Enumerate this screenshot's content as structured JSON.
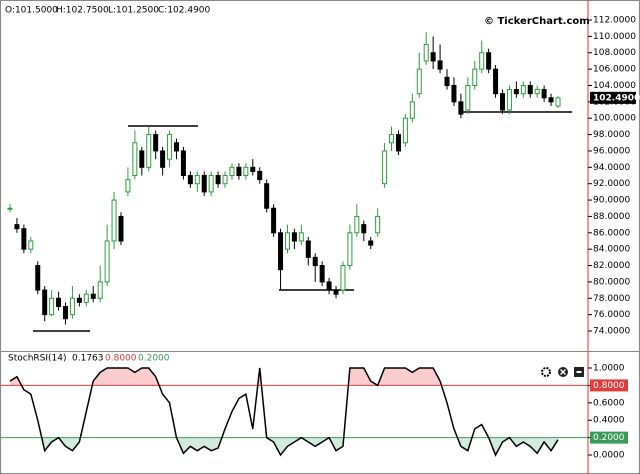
{
  "chart_data": [
    {
      "type": "candlestick",
      "ohlc_labels": [
        "O:101.5000",
        "H:102.7500",
        "L:101.2500",
        "C:102.4900"
      ],
      "watermark": "© TickerChart.com",
      "open": [
        89,
        87,
        86.5,
        84,
        82,
        79,
        76,
        78,
        77,
        76,
        78,
        77.5,
        78.5,
        78,
        80,
        85,
        88,
        91,
        93,
        96,
        94,
        98,
        96,
        95,
        97,
        96,
        93,
        92,
        93,
        91,
        93,
        92,
        93,
        94,
        93,
        94,
        93.5,
        92,
        89,
        86,
        84,
        86,
        85,
        85,
        83,
        82,
        80,
        79,
        79,
        82,
        86,
        87,
        85,
        86,
        92,
        97,
        98,
        97,
        100,
        103,
        107,
        108,
        107,
        105,
        104,
        102,
        101,
        104,
        106,
        108,
        106,
        103,
        101,
        103.5,
        103,
        104,
        103,
        103.5,
        102.5,
        101.5
      ],
      "high": [
        89.5,
        87.8,
        87,
        85.5,
        82.5,
        79.5,
        79,
        78.8,
        77.5,
        79.5,
        78.5,
        79,
        79.5,
        82,
        87,
        91,
        88.5,
        94,
        98.5,
        96.5,
        99,
        98.5,
        96.5,
        98.5,
        97.5,
        96.5,
        93.5,
        93.5,
        93.5,
        93.5,
        93.5,
        93.5,
        94.5,
        94.5,
        94.5,
        95,
        94,
        92.5,
        89.5,
        86.5,
        87,
        86.5,
        87,
        85.5,
        83.5,
        82.5,
        80.5,
        79.5,
        82.5,
        87,
        89.5,
        87.5,
        85.5,
        89,
        97,
        99,
        98.5,
        100.5,
        103,
        108,
        110.5,
        110,
        109,
        106,
        105,
        103,
        105,
        107,
        109.5,
        108.5,
        106.5,
        103.5,
        104,
        104.5,
        104.5,
        104.5,
        104,
        104,
        103,
        102.75
      ],
      "low": [
        88.5,
        86,
        83.5,
        83.5,
        78.5,
        75.2,
        75.8,
        76.5,
        74.8,
        75.5,
        77,
        77,
        77.5,
        77.5,
        79.5,
        84,
        84.5,
        90.5,
        92.5,
        93,
        93.5,
        95,
        93,
        94,
        95,
        92.5,
        91.5,
        91,
        90.5,
        90.5,
        91.5,
        91.5,
        92.5,
        92.5,
        92.5,
        93,
        92,
        88.5,
        85.5,
        79,
        83.5,
        84,
        84.5,
        82,
        80,
        79.5,
        78.5,
        78,
        78.5,
        81.5,
        85.5,
        85,
        84,
        85.5,
        91.5,
        96,
        95.5,
        96.5,
        99.5,
        102.5,
        106.5,
        106,
        105.5,
        103.5,
        101.5,
        100,
        100.5,
        103.5,
        105.5,
        105.5,
        102.5,
        100.5,
        100.5,
        102.5,
        102.5,
        102.5,
        102.5,
        102,
        101.5,
        101.25
      ],
      "close": [
        89,
        86.5,
        84,
        85,
        79,
        76,
        78,
        77,
        75.5,
        78,
        77.5,
        78.5,
        78,
        80,
        85,
        90,
        85,
        92.5,
        97,
        94,
        98,
        96,
        94,
        98,
        96,
        93,
        92,
        93,
        91,
        93,
        92,
        93,
        94,
        93,
        94,
        93.5,
        92.5,
        89,
        86,
        81.5,
        86,
        85,
        86,
        83,
        82,
        80,
        79,
        78.5,
        82,
        86,
        88,
        86,
        84.5,
        88,
        96,
        98,
        96,
        100,
        102,
        106,
        109,
        107,
        106,
        104,
        102,
        100.5,
        104,
        106,
        108,
        106,
        103,
        101,
        103.5,
        103,
        104,
        103,
        103.5,
        102.5,
        102,
        102.49
      ],
      "up_color": "#2e9e3e",
      "down_color": "#000000",
      "ylim": [
        71.68,
        114.2
      ],
      "yticks": [
        {
          "value": 74,
          "label": "74.0000"
        },
        {
          "value": 76,
          "label": "76.0000"
        },
        {
          "value": 78,
          "label": "78.0000"
        },
        {
          "value": 80,
          "label": "80.0000"
        },
        {
          "value": 82,
          "label": "82.0000"
        },
        {
          "value": 84,
          "label": "84.0000"
        },
        {
          "value": 86,
          "label": "86.0000"
        },
        {
          "value": 88,
          "label": "88.0000"
        },
        {
          "value": 90,
          "label": "90.0000"
        },
        {
          "value": 92,
          "label": "92.0000"
        },
        {
          "value": 94,
          "label": "94.0000"
        },
        {
          "value": 96,
          "label": "96.0000"
        },
        {
          "value": 98,
          "label": "98.0000"
        },
        {
          "value": 100,
          "label": "100.0000"
        },
        {
          "value": 102,
          "label": "102.0000"
        },
        {
          "value": 104,
          "label": "104.0000"
        },
        {
          "value": 106,
          "label": "106.0000"
        },
        {
          "value": 108,
          "label": "108.0000"
        },
        {
          "value": 110,
          "label": "110.0000"
        },
        {
          "value": 112,
          "label": "112.0000"
        }
      ],
      "last_price": {
        "value": 102.49,
        "label": "102.4900"
      }
    },
    {
      "type": "line",
      "name": "StochRSI(14)",
      "current": {
        "value": 0.1763,
        "label": "0.1763"
      },
      "values": [
        0.85,
        0.9,
        0.75,
        0.7,
        0.4,
        0.05,
        0.15,
        0.2,
        0.1,
        0.05,
        0.15,
        0.5,
        0.85,
        0.95,
        1,
        1,
        1,
        1,
        0.95,
        1,
        1,
        0.9,
        0.7,
        0.6,
        0.2,
        0.02,
        0.1,
        0.05,
        0.1,
        0.05,
        0.08,
        0.3,
        0.5,
        0.65,
        0.7,
        0.3,
        1,
        0.2,
        0.15,
        0,
        0.1,
        0.15,
        0.2,
        0.15,
        0.1,
        0.15,
        0.2,
        0.05,
        0.1,
        1,
        1,
        1,
        0.85,
        0.8,
        1,
        1,
        1,
        1,
        0.95,
        1,
        1,
        1,
        0.85,
        0.6,
        0.3,
        0.1,
        0.05,
        0.3,
        0.35,
        0.2,
        0,
        0.15,
        0.2,
        0.1,
        0.15,
        0.1,
        0.02,
        0.15,
        0.05,
        0.1763
      ],
      "color": "#000000",
      "ylim": [
        -0.172,
        1.161
      ],
      "yticks": [
        {
          "value": 0,
          "label": "0.0000"
        },
        {
          "value": 0.2,
          "label": "0.2000"
        },
        {
          "value": 0.4,
          "label": "0.4000"
        },
        {
          "value": 0.6,
          "label": "0.6000"
        },
        {
          "value": 0.8,
          "label": "0.8000"
        },
        {
          "value": 1,
          "label": "1.0000"
        }
      ],
      "levels": [
        {
          "value": 0.8,
          "label": "0.8000",
          "color": "#e03c3c",
          "fill": "#f9cdcd"
        },
        {
          "value": 0.2,
          "label": "0.2000",
          "color": "#3a9a5a",
          "fill": "#d3ebdc"
        }
      ]
    }
  ]
}
